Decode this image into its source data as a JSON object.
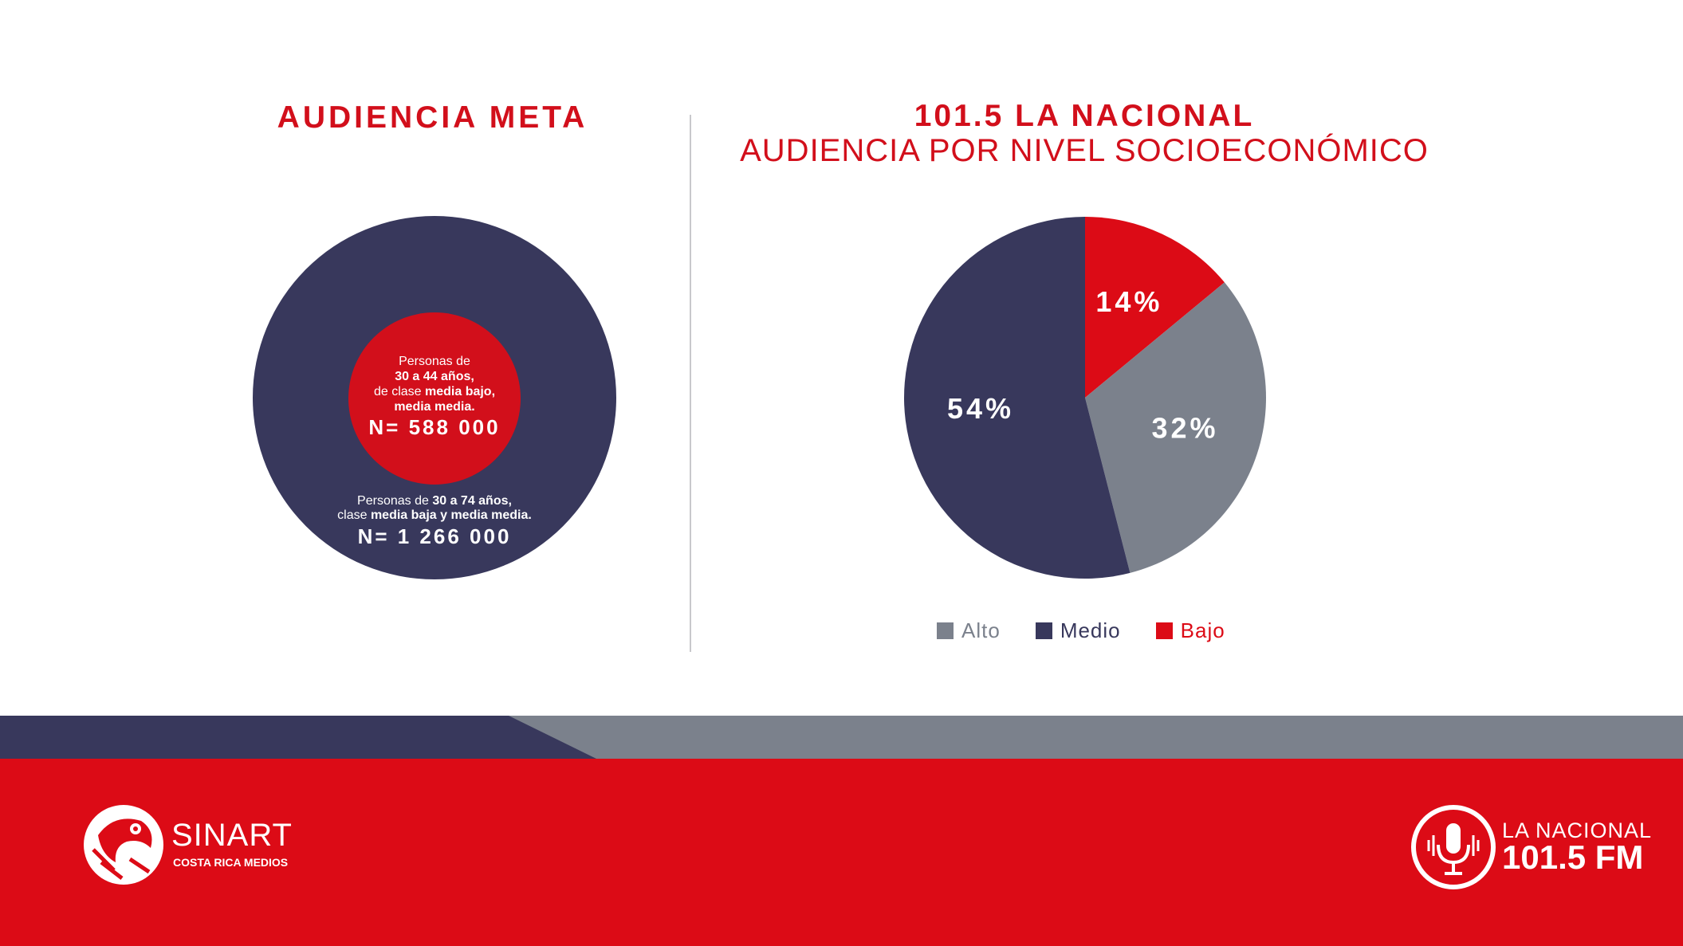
{
  "left": {
    "title": "AUDIENCIA META",
    "inner_line1": "Personas de",
    "inner_line2": "30 a 44 años,",
    "inner_line3_pre": "de clase ",
    "inner_line3_bold": "media bajo,",
    "inner_line4": "media media.",
    "inner_n": "N= 588 000",
    "outer_line1_pre": "Personas de ",
    "outer_line1_bold": "30 a 74 años,",
    "outer_line2_pre": "clase ",
    "outer_line2_bold": "media baja y media media.",
    "outer_n": "N= 1 266 000"
  },
  "right": {
    "title_line1": "101.5 LA NACIONAL",
    "title_line2": "AUDIENCIA POR NIVEL SOCIOECONÓMICO"
  },
  "chart_data": {
    "type": "pie",
    "categories": [
      "Bajo",
      "Alto",
      "Medio"
    ],
    "values": [
      14,
      32,
      54
    ],
    "data_labels": [
      "14%",
      "32%",
      "54%"
    ],
    "colors": [
      "#dc0b16",
      "#7b818c",
      "#38385c"
    ],
    "legend": [
      "Alto",
      "Medio",
      "Bajo"
    ],
    "legend_colors": [
      "#7b818c",
      "#38385c",
      "#dc0b16"
    ],
    "legend_placement": "bottom"
  },
  "footer": {
    "sinart_name": "SINART",
    "sinart_sub": "COSTA RICA MEDIOS",
    "radio_name": "LA NACIONAL",
    "radio_freq": "101.5 FM"
  },
  "colors": {
    "red": "#dc0b16",
    "navy": "#38385c",
    "gray": "#7b818c"
  }
}
